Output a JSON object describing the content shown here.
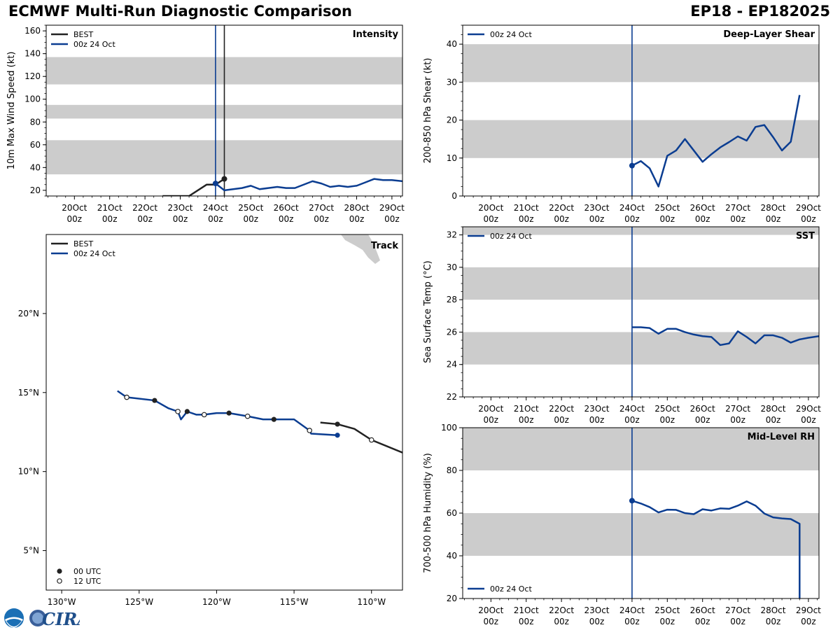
{
  "header": {
    "title": "ECMWF Multi-Run Diagnostic Comparison",
    "storm_id": "EP18 - EP182025"
  },
  "colors": {
    "best": "#222222",
    "run": "#0b3d91",
    "band": "#cccccc"
  },
  "time_ticks": {
    "days": [
      "20Oct",
      "21Oct",
      "22Oct",
      "23Oct",
      "24Oct",
      "25Oct",
      "26Oct",
      "27Oct",
      "28Oct",
      "29Oct"
    ],
    "hour": "00z"
  },
  "chart_data": [
    {
      "id": "intensity",
      "type": "line",
      "title": "Intensity",
      "ylabel": "10m Max Wind Speed (kt)",
      "xlim": [
        19.2,
        29.3
      ],
      "ylim": [
        15,
        165
      ],
      "yticks": [
        20,
        40,
        60,
        80,
        100,
        120,
        140,
        160
      ],
      "bands": [
        [
          34,
          64
        ],
        [
          83,
          95
        ],
        [
          113,
          137
        ]
      ],
      "vlines": [
        {
          "x": 24.0,
          "series": "run"
        },
        {
          "x": 24.25,
          "series": "best"
        }
      ],
      "legend": [
        "BEST",
        "00z 24 Oct"
      ],
      "series": [
        {
          "name": "BEST",
          "color_key": "best",
          "x": [
            22.5,
            23.25,
            23.75,
            24.0,
            24.25
          ],
          "y": [
            15,
            15,
            25,
            25,
            30
          ],
          "markers": [
            {
              "x": 24.25,
              "y": 30
            }
          ]
        },
        {
          "name": "00z 24 Oct",
          "color_key": "run",
          "x": [
            24.0,
            24.25,
            24.5,
            24.75,
            25.0,
            25.25,
            25.5,
            25.75,
            26.0,
            26.25,
            26.5,
            26.75,
            27.0,
            27.25,
            27.5,
            27.75,
            28.0,
            28.25,
            28.5,
            28.75,
            29.0,
            29.3
          ],
          "y": [
            26,
            20,
            21,
            22,
            24,
            21,
            22,
            23,
            22,
            22,
            25,
            28,
            26,
            23,
            24,
            23,
            24,
            27,
            30,
            29,
            29,
            28
          ],
          "markers": [
            {
              "x": 24.0,
              "y": 26
            }
          ]
        }
      ]
    },
    {
      "id": "shear",
      "type": "line",
      "title": "Deep-Layer Shear",
      "ylabel": "200-850 hPa Shear (kt)",
      "xlim": [
        19.2,
        29.3
      ],
      "ylim": [
        0,
        45
      ],
      "yticks": [
        0,
        10,
        20,
        30,
        40
      ],
      "bands": [
        [
          10,
          20
        ],
        [
          30,
          40
        ]
      ],
      "vlines": [
        {
          "x": 24.0,
          "series": "run"
        }
      ],
      "legend": [
        "00z 24 Oct"
      ],
      "series": [
        {
          "name": "00z 24 Oct",
          "color_key": "run",
          "x": [
            24.0,
            24.25,
            24.5,
            24.75,
            25.0,
            25.25,
            25.5,
            25.75,
            26.0,
            26.25,
            26.5,
            26.75,
            27.0,
            27.25,
            27.5,
            27.75,
            28.0,
            28.25,
            28.5,
            28.75
          ],
          "y": [
            8,
            9.2,
            7.3,
            2.5,
            10.6,
            12,
            15,
            12,
            9,
            11,
            12.8,
            14.2,
            15.7,
            14.6,
            18.2,
            18.7,
            15.5,
            12,
            14.3,
            26.6
          ],
          "markers": [
            {
              "x": 24.0,
              "y": 8
            }
          ]
        }
      ]
    },
    {
      "id": "sst",
      "type": "line",
      "title": "SST",
      "ylabel": "Sea Surface Temp (°C)",
      "xlim": [
        19.2,
        29.3
      ],
      "ylim": [
        22,
        32.5
      ],
      "yticks": [
        22,
        24,
        26,
        28,
        30,
        32
      ],
      "bands": [
        [
          24,
          26
        ],
        [
          28,
          30
        ],
        [
          32,
          32.5
        ]
      ],
      "vlines": [
        {
          "x": 24.0,
          "series": "run"
        }
      ],
      "legend": [
        "00z 24 Oct"
      ],
      "series": [
        {
          "name": "00z 24 Oct",
          "color_key": "run",
          "x": [
            24.0,
            24.25,
            24.5,
            24.75,
            25.0,
            25.25,
            25.5,
            25.75,
            26.0,
            26.25,
            26.5,
            26.75,
            27.0,
            27.25,
            27.5,
            27.75,
            28.0,
            28.25,
            28.5,
            28.75,
            29.0,
            29.3
          ],
          "y": [
            26.3,
            26.3,
            26.25,
            25.9,
            26.2,
            26.2,
            26.0,
            25.85,
            25.75,
            25.7,
            25.2,
            25.3,
            26.05,
            25.7,
            25.3,
            25.8,
            25.8,
            25.65,
            25.35,
            25.55,
            25.65,
            25.75
          ],
          "markers": []
        }
      ]
    },
    {
      "id": "rh",
      "type": "line",
      "title": "Mid-Level RH",
      "ylabel": "700-500 hPa Humidity (%)",
      "xlim": [
        19.2,
        29.3
      ],
      "ylim": [
        20,
        100
      ],
      "yticks": [
        20,
        40,
        60,
        80,
        100
      ],
      "bands": [
        [
          40,
          60
        ],
        [
          80,
          100
        ]
      ],
      "vlines": [
        {
          "x": 24.0,
          "series": "run"
        }
      ],
      "legend": [
        "00z 24 Oct"
      ],
      "series": [
        {
          "name": "00z 24 Oct",
          "color_key": "run",
          "x": [
            24.0,
            24.25,
            24.5,
            24.75,
            25.0,
            25.25,
            25.5,
            25.75,
            26.0,
            26.25,
            26.5,
            26.75,
            27.0,
            27.25,
            27.5,
            27.75,
            28.0,
            28.25,
            28.5,
            28.75,
            28.75
          ],
          "y": [
            65.8,
            64.5,
            62.8,
            60.3,
            61.6,
            61.5,
            60,
            59.5,
            61.8,
            61.2,
            62.2,
            62,
            63.5,
            65.5,
            63.5,
            59.8,
            58,
            57.5,
            57.2,
            55,
            20
          ],
          "markers": [
            {
              "x": 24.0,
              "y": 65.8
            }
          ]
        }
      ]
    },
    {
      "id": "track",
      "type": "scatter",
      "title": "Track",
      "xlim": [
        -131,
        -108
      ],
      "ylim": [
        2.5,
        25
      ],
      "xticks": [
        -130,
        -125,
        -120,
        -115,
        -110
      ],
      "xticklabels": [
        "130°W",
        "125°W",
        "120°W",
        "115°W",
        "110°W"
      ],
      "yticks": [
        5,
        10,
        15,
        20
      ],
      "yticklabels": [
        "5°N",
        "10°N",
        "15°N",
        "20°N"
      ],
      "legend": [
        "BEST",
        "00z 24 Oct"
      ],
      "marker_legend": [
        "00 UTC",
        "12 UTC"
      ],
      "series": [
        {
          "name": "BEST",
          "color_key": "best",
          "lon": [
            -113.3,
            -112.2,
            -111.1,
            -110.0,
            -108.0
          ],
          "lat": [
            13.1,
            13.0,
            12.7,
            12.0,
            11.2
          ],
          "markers_00": [
            [
              -112.2,
              13.0
            ]
          ],
          "markers_12": [
            [
              -110.0,
              12.0
            ]
          ]
        },
        {
          "name": "00z 24 Oct",
          "color_key": "run",
          "lon": [
            -126.4,
            -125.8,
            -124.0,
            -123.1,
            -122.5,
            -122.3,
            -121.9,
            -121.3,
            -120.8,
            -120.0,
            -119.2,
            -118.0,
            -117.0,
            -116.3,
            -115.0,
            -114.0,
            -113.9,
            -112.2
          ],
          "lat": [
            15.1,
            14.7,
            14.5,
            14.0,
            13.8,
            13.3,
            13.8,
            13.6,
            13.6,
            13.7,
            13.7,
            13.5,
            13.3,
            13.3,
            13.3,
            12.6,
            12.4,
            12.3
          ],
          "markers_00": [
            [
              -124.0,
              14.5
            ],
            [
              -121.9,
              13.8
            ],
            [
              -119.2,
              13.7
            ],
            [
              -116.3,
              13.3
            ],
            [
              -112.2,
              12.3
            ]
          ],
          "markers_12": [
            [
              -125.8,
              14.7
            ],
            [
              -122.5,
              13.8
            ],
            [
              -120.8,
              13.6
            ],
            [
              -118.0,
              13.5
            ],
            [
              -114.0,
              12.6
            ]
          ]
        }
      ]
    }
  ],
  "logo": {
    "text": "CIRA"
  }
}
